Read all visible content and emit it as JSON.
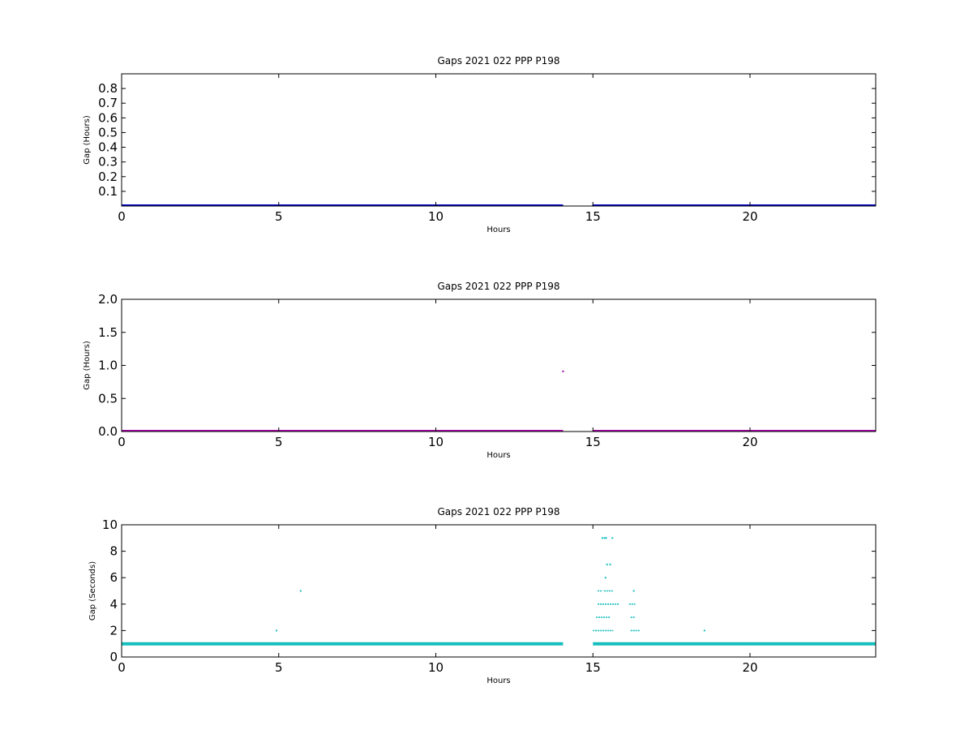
{
  "chart_data": [
    {
      "type": "scatter",
      "title": "Gaps 2021 022 PPP  P198",
      "xlabel": "Hours",
      "ylabel": "Gap (Hours)",
      "xlim": [
        0,
        24
      ],
      "ylim": [
        0,
        0.9
      ],
      "x_ticks": [
        0,
        5,
        10,
        15,
        20
      ],
      "y_ticks": [
        0.1,
        0.2,
        0.3,
        0.4,
        0.5,
        0.6,
        0.7,
        0.8
      ],
      "x_tick_labels": [
        "0",
        "5",
        "10",
        "15",
        "20"
      ],
      "y_tick_labels": [
        "0.1",
        "0.2",
        "0.3",
        "0.4",
        "0.5",
        "0.6",
        "0.7",
        "0.8"
      ],
      "grid": false,
      "color": "#0000cc",
      "series": [
        {
          "dense_segments": [
            [
              0,
              14.05,
              0.0003
            ],
            [
              15.0,
              24,
              0.0003
            ]
          ],
          "points": [
            [
              5.7,
              0.002
            ],
            [
              15.0,
              0.002
            ]
          ]
        }
      ]
    },
    {
      "type": "scatter",
      "title": "Gaps 2021 022 PPP  P198",
      "xlabel": "Hours",
      "ylabel": "Gap (Hours)",
      "xlim": [
        0,
        24
      ],
      "ylim": [
        0,
        2.0
      ],
      "x_ticks": [
        0,
        5,
        10,
        15,
        20
      ],
      "y_ticks": [
        0.0,
        0.5,
        1.0,
        1.5,
        2.0
      ],
      "x_tick_labels": [
        "0",
        "5",
        "10",
        "15",
        "20"
      ],
      "y_tick_labels": [
        "0.0",
        "0.5",
        "1.0",
        "1.5",
        "2.0"
      ],
      "grid": false,
      "color": "#aa00aa",
      "series": [
        {
          "dense_segments": [
            [
              0,
              14.05,
              0.0003
            ],
            [
              15.0,
              24,
              0.0003
            ]
          ],
          "points": [
            [
              14.05,
              0.91
            ]
          ]
        }
      ]
    },
    {
      "type": "scatter",
      "title": "Gaps 2021 022 PPP  P198",
      "xlabel": "Hours",
      "ylabel": "Gap (Seconds)",
      "xlim": [
        0,
        24
      ],
      "ylim": [
        0,
        10
      ],
      "x_ticks": [
        0,
        5,
        10,
        15,
        20
      ],
      "y_ticks": [
        0,
        2,
        4,
        6,
        8,
        10
      ],
      "x_tick_labels": [
        "0",
        "5",
        "10",
        "15",
        "20"
      ],
      "y_tick_labels": [
        "0",
        "2",
        "4",
        "6",
        "8",
        "10"
      ],
      "grid": false,
      "color": "#17bebe",
      "series": [
        {
          "dense_segments": [
            [
              0,
              14.05,
              1
            ],
            [
              15.0,
              24,
              1
            ]
          ],
          "hsegments": [
            [
              15.0,
              15.65,
              2
            ],
            [
              16.2,
              16.5,
              2
            ],
            [
              15.1,
              15.55,
              3
            ],
            [
              16.2,
              16.35,
              3
            ],
            [
              15.15,
              15.85,
              4
            ],
            [
              16.15,
              16.35,
              4
            ],
            [
              15.15,
              15.3,
              5
            ],
            [
              15.35,
              15.65,
              5
            ]
          ],
          "points": [
            [
              4.93,
              2
            ],
            [
              18.55,
              2
            ],
            [
              5.7,
              5
            ],
            [
              16.3,
              5
            ],
            [
              15.4,
              6
            ],
            [
              15.45,
              7
            ],
            [
              15.55,
              7
            ],
            [
              15.3,
              9
            ],
            [
              15.37,
              9
            ],
            [
              15.42,
              9
            ],
            [
              15.62,
              9
            ]
          ]
        }
      ]
    }
  ]
}
